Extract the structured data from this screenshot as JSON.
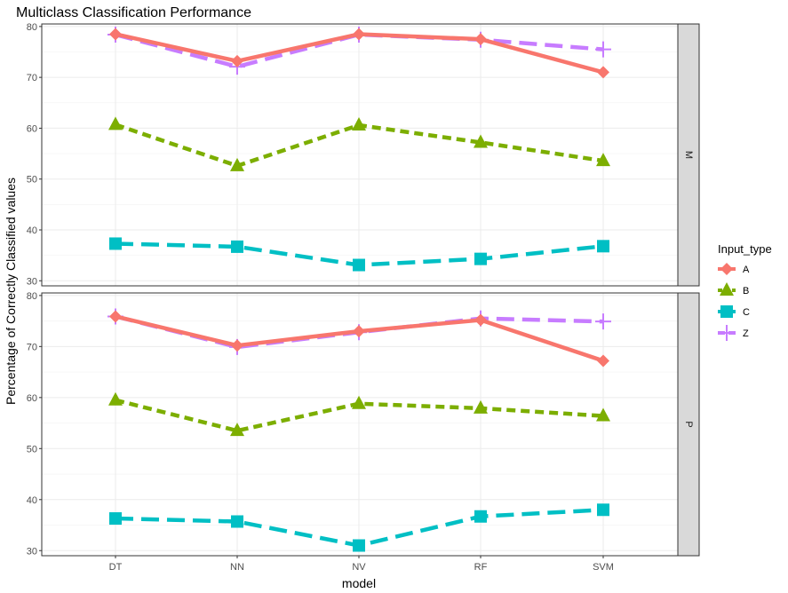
{
  "chart_data": {
    "type": "line",
    "title": "Multiclass Classification Performance",
    "xlabel": "model",
    "ylabel": "Percentage of Correctly Classified values",
    "categories": [
      "DT",
      "NN",
      "NV",
      "RF",
      "SVM"
    ],
    "ylim": [
      29,
      80.5
    ],
    "yticks": [
      30,
      40,
      50,
      60,
      70,
      80
    ],
    "grid": true,
    "legend": {
      "title": "Input_type",
      "placement": "right",
      "entries": [
        "A",
        "B",
        "C",
        "Z"
      ]
    },
    "series_styles": {
      "A": {
        "color": "#F8766D",
        "dash": "solid",
        "marker": "diamond"
      },
      "B": {
        "color": "#7CAE00",
        "dash": "short-dash",
        "marker": "triangle"
      },
      "C": {
        "color": "#00BFC4",
        "dash": "long-dash",
        "marker": "square"
      },
      "Z": {
        "color": "#C77CFF",
        "dash": "long-dash",
        "marker": "cross"
      }
    },
    "facets": [
      {
        "label": "M",
        "series": [
          {
            "name": "A",
            "values": [
              78.5,
              73.2,
              78.5,
              77.5,
              71.0
            ]
          },
          {
            "name": "B",
            "values": [
              60.7,
              52.6,
              60.6,
              57.2,
              53.6
            ]
          },
          {
            "name": "C",
            "values": [
              37.3,
              36.7,
              33.1,
              34.3,
              36.8
            ]
          },
          {
            "name": "Z",
            "values": [
              78.4,
              72.1,
              78.4,
              77.4,
              75.5
            ]
          }
        ]
      },
      {
        "label": "P",
        "series": [
          {
            "name": "A",
            "values": [
              75.9,
              70.2,
              73.0,
              75.2,
              67.2
            ]
          },
          {
            "name": "B",
            "values": [
              59.5,
              53.5,
              58.8,
              57.9,
              56.4
            ]
          },
          {
            "name": "C",
            "values": [
              36.3,
              35.7,
              31.0,
              36.7,
              38.0
            ]
          },
          {
            "name": "Z",
            "values": [
              75.9,
              69.9,
              72.8,
              75.5,
              74.9
            ]
          }
        ]
      }
    ]
  }
}
